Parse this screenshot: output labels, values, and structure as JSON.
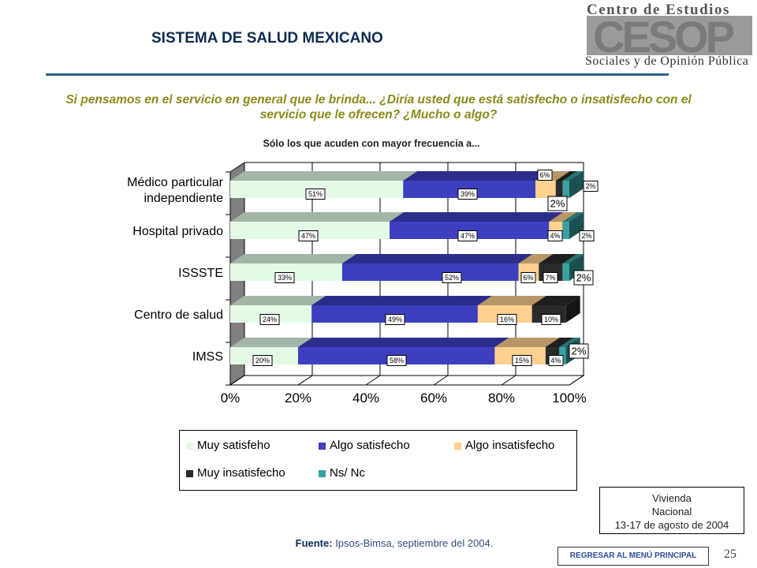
{
  "header": {
    "title": "SISTEMA DE SALUD MEXICANO"
  },
  "logo": {
    "line1": "Centro de Estudios",
    "mark": "CESOP",
    "line2": "Sociales y de Opinión Pública"
  },
  "question": "Si pensamos en el servicio en general que le brinda... ¿Diría usted que está satisfecho o insatisfecho con el servicio que le ofrecen? ¿Mucho o algo?",
  "subtitle": "Sólo los que acuden con mayor frecuencia a...",
  "chart_data": {
    "type": "bar",
    "orientation": "horizontal",
    "stacked": "percent",
    "categories": [
      "Médico particular\nindependiente",
      "Hospital privado",
      "ISSSTE",
      "Centro de salud",
      "IMSS"
    ],
    "series": [
      {
        "name": "Muy satisfeho",
        "values": [
          51,
          47,
          33,
          24,
          20
        ],
        "color": "#e3fbe6"
      },
      {
        "name": "Algo satisfecho",
        "values": [
          39,
          47,
          52,
          49,
          58
        ],
        "color": "#3d3fbf"
      },
      {
        "name": "Algo insatisfecho",
        "values": [
          6,
          4,
          6,
          16,
          15
        ],
        "color": "#ffd08e"
      },
      {
        "name": "Muy insatisfecho",
        "values": [
          2,
          0,
          7,
          10,
          4
        ],
        "color": "#2a2a2a"
      },
      {
        "name": "Ns/ Nc",
        "values": [
          2,
          2,
          2,
          0,
          2
        ],
        "color": "#3aa0a0"
      }
    ],
    "data_labels": [
      [
        "51%",
        "39%",
        "6%",
        "2%",
        "2%"
      ],
      [
        "47%",
        "47%",
        "4%",
        "",
        "2%"
      ],
      [
        "33%",
        "52%",
        "6%",
        "7%",
        "2%"
      ],
      [
        "24%",
        "49%",
        "16%",
        "10%",
        ""
      ],
      [
        "20%",
        "58%",
        "15%",
        "4%",
        "2%"
      ]
    ],
    "x_ticks": [
      "0%",
      "20%",
      "40%",
      "60%",
      "80%",
      "100%"
    ],
    "xlim": [
      0,
      100
    ],
    "grid": true,
    "legend_position": "bottom"
  },
  "note": {
    "line1": "Vivienda",
    "line2": "Nacional",
    "line3": "13-17 de agosto de 2004"
  },
  "source": {
    "label": "Fuente:",
    "text": " Ipsos-Bimsa, septiembre del 2004."
  },
  "menu_button": "REGRESAR AL MENÚ PRINCIPAL",
  "page_number": "25"
}
